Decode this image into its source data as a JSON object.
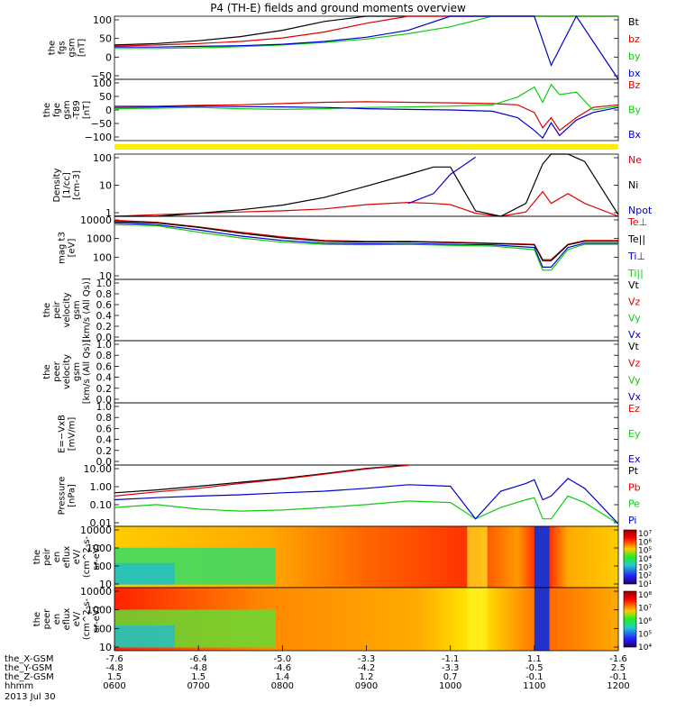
{
  "title": "P4 (TH-E) fields and ground moments overview",
  "colors": {
    "black": "#000000",
    "red": "#dd0000",
    "green": "#11cc11",
    "blue": "#0000cc",
    "yellow": "#ffee00"
  },
  "chart_data": [
    {
      "id": "fgs",
      "type": "line",
      "ylabel": [
        "the",
        "fgs",
        "gsm",
        "[nT]"
      ],
      "yticks": [
        "100",
        "50",
        "0",
        "−50"
      ],
      "ylim": [
        -80,
        100
      ],
      "legend": [
        "Bt",
        "bz",
        "by",
        "bx"
      ],
      "x": [
        6.0,
        6.5,
        7.0,
        7.5,
        8.0,
        8.5,
        9.0,
        9.5,
        10.0,
        10.5,
        11.0,
        11.2,
        11.5,
        12.0
      ],
      "series": [
        {
          "name": "Bt",
          "values": [
            18,
            22,
            30,
            42,
            60,
            85,
            100,
            100,
            100,
            100,
            100,
            100,
            100,
            100
          ]
        },
        {
          "name": "bz",
          "values": [
            15,
            18,
            22,
            28,
            38,
            55,
            80,
            100,
            100,
            100,
            100,
            100,
            100,
            100
          ]
        },
        {
          "name": "by",
          "values": [
            8,
            8,
            10,
            13,
            18,
            25,
            35,
            50,
            70,
            100,
            100,
            100,
            100,
            100
          ]
        },
        {
          "name": "bx",
          "values": [
            12,
            12,
            14,
            16,
            20,
            28,
            40,
            60,
            100,
            100,
            100,
            -40,
            100,
            -80
          ]
        }
      ]
    },
    {
      "id": "fge",
      "type": "line",
      "ylabel": [
        "the",
        "fge",
        "gsm",
        "-T89",
        "[nT]"
      ],
      "yticks": [
        "100",
        "50",
        "0",
        "−50",
        "−100"
      ],
      "ylim": [
        -130,
        110
      ],
      "legend": [
        "Bz",
        "By",
        "Bx"
      ],
      "x": [
        6.0,
        6.5,
        7.0,
        7.5,
        8.0,
        8.5,
        9.0,
        9.5,
        10.0,
        10.5,
        10.8,
        11.0,
        11.1,
        11.2,
        11.3,
        11.5,
        11.7,
        12.0
      ],
      "series": [
        {
          "name": "Bz",
          "values": [
            5,
            5,
            8,
            10,
            15,
            20,
            22,
            20,
            18,
            15,
            10,
            -20,
            -80,
            -40,
            -90,
            -40,
            0,
            10
          ]
        },
        {
          "name": "By",
          "values": [
            -5,
            -3,
            0,
            -5,
            -8,
            -5,
            0,
            2,
            5,
            10,
            40,
            80,
            20,
            90,
            50,
            60,
            -10,
            5
          ]
        },
        {
          "name": "Bx",
          "values": [
            0,
            2,
            5,
            3,
            2,
            0,
            -5,
            -8,
            -10,
            -15,
            -40,
            -90,
            -120,
            -60,
            -110,
            -50,
            -20,
            0
          ]
        }
      ]
    },
    {
      "id": "density",
      "type": "line",
      "ylabel": [
        "Density",
        "[1/cc]",
        "[cm-3]"
      ],
      "yticks": [
        "100",
        "10",
        "1"
      ],
      "log": true,
      "ylim": [
        0.6,
        200
      ],
      "legend": [
        "Ne",
        "Ni",
        "Npot"
      ],
      "x": [
        6.0,
        6.5,
        7.0,
        7.5,
        8.0,
        8.5,
        9.0,
        9.5,
        9.8,
        10.0,
        10.3,
        10.6,
        10.9,
        11.1,
        11.2,
        11.4,
        11.6,
        12.0
      ],
      "series": [
        {
          "name": "Ne",
          "values": [
            0.6,
            0.7,
            0.8,
            0.9,
            1.0,
            1.2,
            1.8,
            2.2,
            2.0,
            1.8,
            0.8,
            0.6,
            0.9,
            6,
            2,
            5,
            2,
            0.6
          ]
        },
        {
          "name": "Ni",
          "values": [
            0.5,
            0.6,
            0.8,
            1.1,
            1.7,
            3.5,
            10,
            30,
            60,
            60,
            1.0,
            0.6,
            2,
            80,
            200,
            200,
            100,
            0.7
          ]
        },
        {
          "name": "Npot",
          "values": [
            null,
            null,
            null,
            null,
            null,
            null,
            null,
            2,
            5,
            30,
            150,
            null,
            null,
            null,
            null,
            null,
            null,
            null
          ]
        }
      ]
    },
    {
      "id": "temp",
      "type": "line",
      "ylabel": [
        "mag t3",
        "[eV]"
      ],
      "yticks": [
        "10000",
        "1000",
        "100",
        "10"
      ],
      "log": true,
      "ylim": [
        3,
        12000
      ],
      "legend": [
        "Te⊥",
        "Te||",
        "Ti⊥",
        "Ti||"
      ],
      "x": [
        6.0,
        6.5,
        7.0,
        7.5,
        8.0,
        8.5,
        9.0,
        9.5,
        10.0,
        10.5,
        11.0,
        11.1,
        11.2,
        11.4,
        11.6,
        12.0
      ],
      "series": [
        {
          "name": "Te⊥",
          "values": [
            7000,
            5500,
            3000,
            1500,
            800,
            500,
            450,
            450,
            400,
            350,
            300,
            40,
            40,
            300,
            500,
            500
          ]
        },
        {
          "name": "Te||",
          "values": [
            6000,
            5000,
            2800,
            1300,
            700,
            450,
            400,
            420,
            380,
            330,
            280,
            35,
            35,
            280,
            450,
            450
          ]
        },
        {
          "name": "Ti⊥",
          "values": [
            5000,
            4000,
            2000,
            900,
            500,
            350,
            320,
            330,
            300,
            280,
            200,
            15,
            15,
            200,
            350,
            350
          ]
        },
        {
          "name": "Ti||",
          "values": [
            4000,
            3500,
            1500,
            700,
            400,
            300,
            280,
            300,
            260,
            240,
            150,
            10,
            10,
            150,
            300,
            300
          ]
        }
      ]
    },
    {
      "id": "peir",
      "type": "line",
      "ylabel": [
        "the",
        "peir",
        "velocity",
        "gsm",
        "[km/s (All Qs)]"
      ],
      "yticks": [
        "1.0",
        "0.8",
        "0.6",
        "0.4",
        "0.2",
        "0.0"
      ],
      "ylim": [
        0,
        1
      ],
      "legend": [
        "Vt",
        "Vz",
        "Vy",
        "Vx"
      ],
      "series": []
    },
    {
      "id": "peer",
      "type": "line",
      "ylabel": [
        "the",
        "peer",
        "velocity",
        "gsm",
        "[km/s (All Qs)]"
      ],
      "yticks": [
        "1.0",
        "0.8",
        "0.6",
        "0.4",
        "0.2",
        "0.0"
      ],
      "ylim": [
        0,
        1
      ],
      "legend": [
        "Vt",
        "Vz",
        "Vy",
        "Vx"
      ],
      "series": []
    },
    {
      "id": "efield",
      "type": "line",
      "ylabel": [
        "E=−VxB",
        "[mV/m]"
      ],
      "yticks": [
        "1.0",
        "0.8",
        "0.6",
        "0.4",
        "0.2",
        "0.0"
      ],
      "ylim": [
        0,
        1
      ],
      "legend": [
        "Ez",
        "Ey",
        "Ex"
      ],
      "series": []
    },
    {
      "id": "pressure",
      "type": "line",
      "ylabel": [
        "Pressure",
        "[nPa]"
      ],
      "yticks": [
        "10.00",
        "1.00",
        "0.10",
        "0.01"
      ],
      "log": true,
      "ylim": [
        0.007,
        40
      ],
      "legend": [
        "Pt",
        "Pb",
        "Pe",
        "Pi"
      ],
      "x": [
        6.0,
        6.5,
        7.0,
        7.5,
        8.0,
        8.5,
        9.0,
        9.5,
        10.0,
        10.3,
        10.6,
        10.9,
        11.0,
        11.1,
        11.2,
        11.4,
        11.6,
        12.0
      ],
      "series": [
        {
          "name": "Pt",
          "values": [
            0.8,
            1.2,
            2,
            3.5,
            6,
            12,
            25,
            40,
            null,
            null,
            null,
            null,
            null,
            null,
            null,
            null,
            null,
            null
          ]
        },
        {
          "name": "Pb",
          "values": [
            0.5,
            0.9,
            1.5,
            3,
            5.5,
            11,
            23,
            38,
            null,
            null,
            null,
            null,
            null,
            null,
            null,
            null,
            null,
            null
          ]
        },
        {
          "name": "Pe",
          "values": [
            0.1,
            0.15,
            0.08,
            0.06,
            0.07,
            0.1,
            0.15,
            0.25,
            0.2,
            0.02,
            0.1,
            0.3,
            0.4,
            0.02,
            0.02,
            0.5,
            0.2,
            0.01
          ]
        },
        {
          "name": "Pi",
          "values": [
            0.3,
            0.4,
            0.5,
            0.6,
            0.8,
            1.0,
            1.5,
            2.5,
            2.0,
            0.02,
            1.0,
            3,
            5,
            0.3,
            0.5,
            6,
            1.5,
            0.01
          ]
        }
      ]
    },
    {
      "id": "peir_spec",
      "type": "heatmap",
      "ylabel": [
        "the",
        "peir",
        "en",
        "eflux",
        "eV/",
        "(cm^2-s-",
        "sr-eV)"
      ],
      "yticks": [
        "10000",
        "1000",
        "100",
        "10"
      ],
      "colorbar": [
        "10⁷",
        "10⁶",
        "10⁵",
        "10⁴",
        "10³",
        "10²",
        "10¹"
      ]
    },
    {
      "id": "peer_spec",
      "type": "heatmap",
      "ylabel": [
        "the",
        "peer",
        "en",
        "eflux",
        "eV/",
        "(cm^2-s-",
        "sr-eV)"
      ],
      "yticks": [
        "10000",
        "1000",
        "100",
        "10"
      ],
      "colorbar": [
        "10⁸",
        "10⁷",
        "10⁶",
        "10⁵",
        "10⁴"
      ]
    }
  ],
  "xaxis": {
    "rows": [
      {
        "label": "the_X-GSM",
        "values": [
          "-7.6",
          "-6.4",
          "-5.0",
          "-3.3",
          "-1.1",
          "1.1",
          "-1.6"
        ]
      },
      {
        "label": "the_Y-GSM",
        "values": [
          "-4.8",
          "-4.8",
          "-4.6",
          "-4.2",
          "-3.3",
          "-0.5",
          "2.5"
        ]
      },
      {
        "label": "the_Z-GSM",
        "values": [
          "1.5",
          "1.5",
          "1.4",
          "1.2",
          "0.7",
          "-0.1",
          "-0.1"
        ]
      },
      {
        "label": "hhmm",
        "values": [
          "0600",
          "0700",
          "0800",
          "0900",
          "1000",
          "1100",
          "1200"
        ]
      }
    ],
    "date": "2013 Jul 30"
  }
}
